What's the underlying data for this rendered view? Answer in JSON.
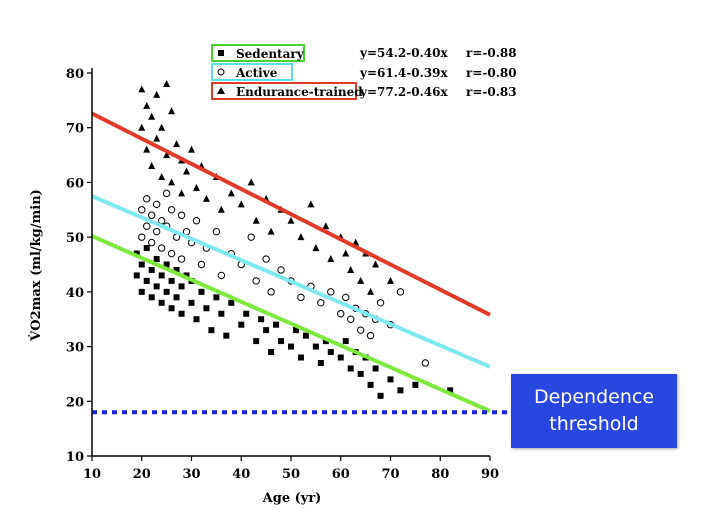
{
  "chart_data": {
    "type": "scatter",
    "xlabel": "Age (yr)",
    "ylabel": "V̇O2max (ml/kg/min)",
    "xlim": [
      10,
      90
    ],
    "ylim": [
      10,
      80
    ],
    "xticks": [
      10,
      20,
      30,
      40,
      50,
      60,
      70,
      80,
      90
    ],
    "yticks": [
      10,
      20,
      30,
      40,
      50,
      60,
      70,
      80
    ],
    "grid": false,
    "legend_position": "top-center",
    "series": [
      {
        "name": "Sedentary",
        "marker": "square",
        "legend_box_color": "#4ad12f",
        "line_color": "#7fe83c",
        "equation": "y=54.2-0.40x",
        "r": "r=-0.88",
        "points": [
          [
            19,
            43
          ],
          [
            19,
            47
          ],
          [
            20,
            40
          ],
          [
            20,
            45
          ],
          [
            21,
            42
          ],
          [
            21,
            48
          ],
          [
            22,
            39
          ],
          [
            22,
            44
          ],
          [
            23,
            41
          ],
          [
            23,
            46
          ],
          [
            24,
            38
          ],
          [
            24,
            43
          ],
          [
            25,
            40
          ],
          [
            25,
            45
          ],
          [
            26,
            37
          ],
          [
            26,
            42
          ],
          [
            27,
            39
          ],
          [
            27,
            44
          ],
          [
            28,
            36
          ],
          [
            28,
            41
          ],
          [
            29,
            43
          ],
          [
            30,
            38
          ],
          [
            30,
            42
          ],
          [
            31,
            35
          ],
          [
            32,
            40
          ],
          [
            33,
            37
          ],
          [
            34,
            33
          ],
          [
            35,
            39
          ],
          [
            36,
            36
          ],
          [
            37,
            32
          ],
          [
            38,
            38
          ],
          [
            40,
            34
          ],
          [
            41,
            36
          ],
          [
            43,
            31
          ],
          [
            44,
            35
          ],
          [
            45,
            33
          ],
          [
            46,
            29
          ],
          [
            47,
            34
          ],
          [
            48,
            31
          ],
          [
            50,
            30
          ],
          [
            51,
            33
          ],
          [
            52,
            28
          ],
          [
            53,
            32
          ],
          [
            55,
            30
          ],
          [
            56,
            27
          ],
          [
            57,
            31
          ],
          [
            58,
            29
          ],
          [
            60,
            28
          ],
          [
            61,
            31
          ],
          [
            62,
            26
          ],
          [
            63,
            29
          ],
          [
            64,
            25
          ],
          [
            65,
            28
          ],
          [
            66,
            23
          ],
          [
            67,
            26
          ],
          [
            68,
            21
          ],
          [
            70,
            24
          ],
          [
            72,
            22
          ],
          [
            75,
            23
          ],
          [
            82,
            22
          ]
        ]
      },
      {
        "name": "Active",
        "marker": "circle",
        "legend_box_color": "#5ee0e8",
        "line_color": "#7fe9ef",
        "equation": "y=61.4-0.39x",
        "r": "r=-0.80",
        "points": [
          [
            20,
            55
          ],
          [
            20,
            50
          ],
          [
            21,
            57
          ],
          [
            21,
            52
          ],
          [
            22,
            54
          ],
          [
            22,
            49
          ],
          [
            23,
            56
          ],
          [
            23,
            51
          ],
          [
            24,
            53
          ],
          [
            24,
            48
          ],
          [
            25,
            58
          ],
          [
            25,
            52
          ],
          [
            26,
            55
          ],
          [
            26,
            47
          ],
          [
            27,
            50
          ],
          [
            28,
            54
          ],
          [
            28,
            46
          ],
          [
            29,
            51
          ],
          [
            30,
            49
          ],
          [
            31,
            53
          ],
          [
            32,
            45
          ],
          [
            33,
            48
          ],
          [
            35,
            51
          ],
          [
            36,
            43
          ],
          [
            38,
            47
          ],
          [
            40,
            45
          ],
          [
            42,
            50
          ],
          [
            43,
            42
          ],
          [
            45,
            46
          ],
          [
            46,
            40
          ],
          [
            48,
            44
          ],
          [
            50,
            42
          ],
          [
            52,
            39
          ],
          [
            54,
            41
          ],
          [
            56,
            38
          ],
          [
            58,
            40
          ],
          [
            60,
            36
          ],
          [
            61,
            39
          ],
          [
            62,
            35
          ],
          [
            63,
            37
          ],
          [
            64,
            33
          ],
          [
            65,
            36
          ],
          [
            66,
            32
          ],
          [
            67,
            35
          ],
          [
            68,
            38
          ],
          [
            70,
            34
          ],
          [
            72,
            40
          ],
          [
            77,
            27
          ]
        ]
      },
      {
        "name": "Endurance-trained",
        "marker": "triangle",
        "legend_box_color": "#e03a2a",
        "line_color": "#e03a2a",
        "equation": "y=77.2-0.46x",
        "r": "r=-0.83",
        "points": [
          [
            20,
            77
          ],
          [
            20,
            70
          ],
          [
            21,
            74
          ],
          [
            21,
            66
          ],
          [
            22,
            72
          ],
          [
            22,
            63
          ],
          [
            23,
            76
          ],
          [
            23,
            68
          ],
          [
            24,
            70
          ],
          [
            24,
            61
          ],
          [
            25,
            78
          ],
          [
            25,
            65
          ],
          [
            26,
            73
          ],
          [
            26,
            60
          ],
          [
            27,
            67
          ],
          [
            28,
            64
          ],
          [
            28,
            58
          ],
          [
            29,
            62
          ],
          [
            30,
            66
          ],
          [
            31,
            59
          ],
          [
            32,
            63
          ],
          [
            33,
            57
          ],
          [
            35,
            61
          ],
          [
            36,
            55
          ],
          [
            38,
            58
          ],
          [
            40,
            56
          ],
          [
            42,
            60
          ],
          [
            43,
            53
          ],
          [
            45,
            57
          ],
          [
            46,
            51
          ],
          [
            48,
            55
          ],
          [
            50,
            53
          ],
          [
            52,
            50
          ],
          [
            54,
            56
          ],
          [
            55,
            48
          ],
          [
            57,
            52
          ],
          [
            58,
            46
          ],
          [
            60,
            50
          ],
          [
            61,
            47
          ],
          [
            62,
            44
          ],
          [
            63,
            49
          ],
          [
            64,
            42
          ],
          [
            65,
            47
          ],
          [
            66,
            40
          ],
          [
            67,
            45
          ],
          [
            70,
            42
          ]
        ]
      }
    ],
    "threshold": {
      "y": 18,
      "color": "#1a23d8",
      "label_lines": [
        "Dependence",
        "threshold"
      ]
    }
  }
}
